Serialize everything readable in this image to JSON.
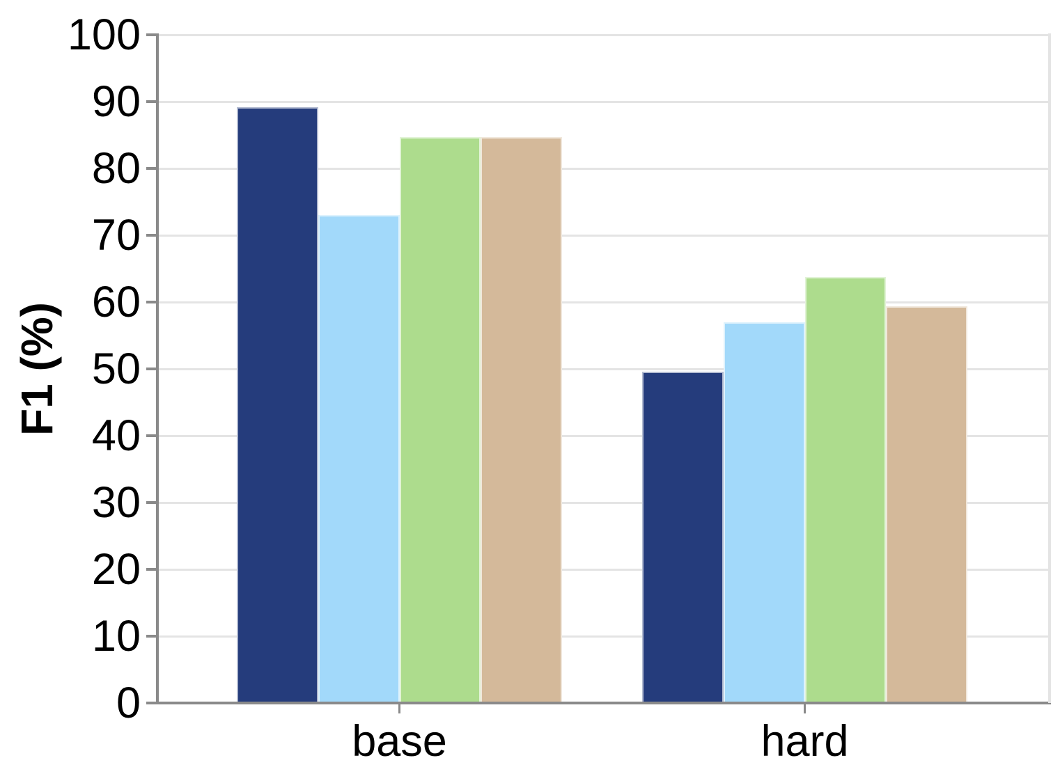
{
  "chart_data": {
    "type": "bar",
    "title": "",
    "xlabel": "",
    "ylabel": "F1 (%)",
    "categories": [
      "base",
      "hard"
    ],
    "series": [
      {
        "color_name": "dark-navy",
        "color": "#253C7C",
        "values": [
          89.2,
          49.6
        ]
      },
      {
        "color_name": "light-blue",
        "color": "#A2D9FA",
        "values": [
          73.0,
          57.0
        ]
      },
      {
        "color_name": "light-green",
        "color": "#ADDC8D",
        "values": [
          84.7,
          63.8
        ]
      },
      {
        "color_name": "tan",
        "color": "#D4B99A",
        "values": [
          84.7,
          59.4
        ]
      }
    ],
    "ylim": [
      0,
      100
    ],
    "yticks": [
      0,
      10,
      20,
      30,
      40,
      50,
      60,
      70,
      80,
      90,
      100
    ],
    "grid": true,
    "legend": {
      "visible": false
    }
  },
  "colors": {
    "axis": "#8A8A8A",
    "gridline": "#E4E4E4",
    "text": "#000000",
    "background": "#FFFFFF"
  }
}
